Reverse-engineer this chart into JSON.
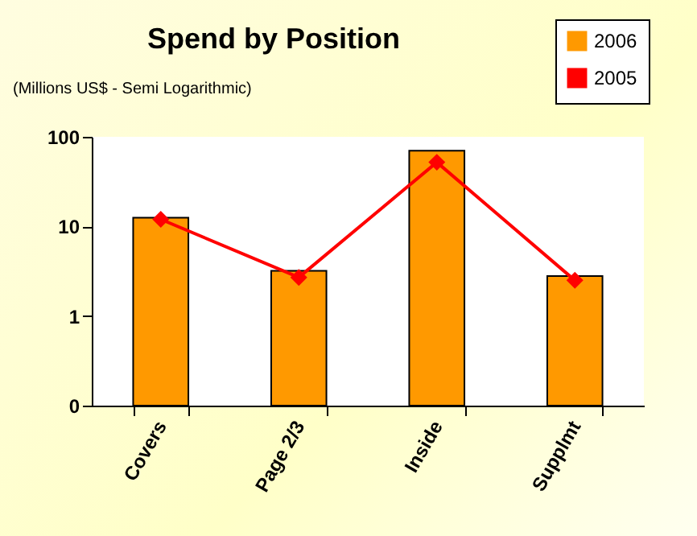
{
  "chart_data": {
    "type": "bar",
    "title": "Spend by Position",
    "subtitle": "(Millions US$ - Semi Logarithmic)",
    "categories": [
      "Covers",
      "Page 2/3",
      "Inside",
      "Supplmt"
    ],
    "series": [
      {
        "name": "2006",
        "color": "#ff9900",
        "values": [
          12.5,
          3.2,
          70,
          2.8
        ]
      },
      {
        "name": "2005",
        "type": "line",
        "color": "#ff0000",
        "values": [
          12,
          2.7,
          52,
          2.5
        ]
      }
    ],
    "log": true,
    "ylim": [
      0.1,
      100
    ],
    "yticks": [
      {
        "value": 0.1,
        "label": "0"
      },
      1,
      10,
      100
    ],
    "legend": "top right",
    "marker": "diamond",
    "line_style": "solid"
  }
}
